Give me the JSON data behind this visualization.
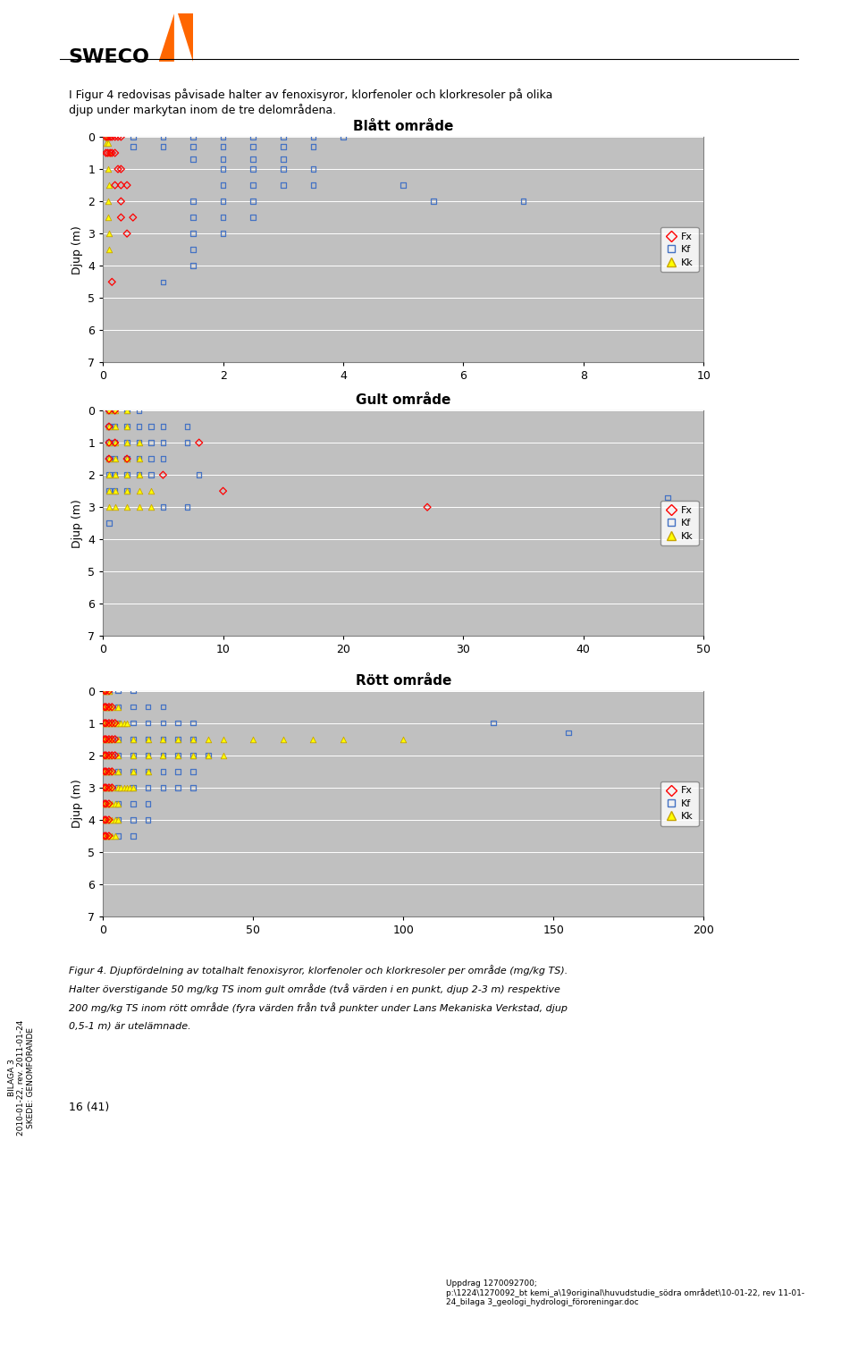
{
  "charts": [
    {
      "title": "Blått område",
      "xlim": [
        0,
        10
      ],
      "ylim": [
        0,
        7
      ],
      "xticks": [
        0,
        2,
        4,
        6,
        8,
        10
      ],
      "yticks": [
        0,
        1,
        2,
        3,
        4,
        5,
        6,
        7
      ],
      "Fx": [
        [
          0.05,
          0
        ],
        [
          0.08,
          0
        ],
        [
          0.12,
          0
        ],
        [
          0.15,
          0
        ],
        [
          0.2,
          0
        ],
        [
          0.25,
          0
        ],
        [
          0.3,
          0
        ],
        [
          0.05,
          0.5
        ],
        [
          0.08,
          0.5
        ],
        [
          0.12,
          0.5
        ],
        [
          0.15,
          0.5
        ],
        [
          0.2,
          0.5
        ],
        [
          0.25,
          1
        ],
        [
          0.3,
          1
        ],
        [
          0.4,
          1.5
        ],
        [
          0.3,
          1.5
        ],
        [
          0.2,
          1.5
        ],
        [
          0.3,
          2
        ],
        [
          0.5,
          2.5
        ],
        [
          0.3,
          2.5
        ],
        [
          0.4,
          3
        ],
        [
          0.15,
          4.5
        ]
      ],
      "Kf": [
        [
          0.5,
          0
        ],
        [
          1.0,
          0
        ],
        [
          1.5,
          0
        ],
        [
          2.0,
          0
        ],
        [
          2.5,
          0
        ],
        [
          3.0,
          0
        ],
        [
          3.5,
          0
        ],
        [
          4.0,
          0
        ],
        [
          0.5,
          0.3
        ],
        [
          1.0,
          0.3
        ],
        [
          1.5,
          0.3
        ],
        [
          2.0,
          0.3
        ],
        [
          2.5,
          0.3
        ],
        [
          3.0,
          0.3
        ],
        [
          3.5,
          0.3
        ],
        [
          1.5,
          0.7
        ],
        [
          2.0,
          0.7
        ],
        [
          2.5,
          0.7
        ],
        [
          3.0,
          0.7
        ],
        [
          2.0,
          1.0
        ],
        [
          2.5,
          1.0
        ],
        [
          3.0,
          1.0
        ],
        [
          3.5,
          1.0
        ],
        [
          2.0,
          1.5
        ],
        [
          2.5,
          1.5
        ],
        [
          3.0,
          1.5
        ],
        [
          3.5,
          1.5
        ],
        [
          1.5,
          2.0
        ],
        [
          2.0,
          2.0
        ],
        [
          2.5,
          2.0
        ],
        [
          1.5,
          2.5
        ],
        [
          2.0,
          2.5
        ],
        [
          2.5,
          2.5
        ],
        [
          1.5,
          3.0
        ],
        [
          2.0,
          3.0
        ],
        [
          1.5,
          3.5
        ],
        [
          1.5,
          4.0
        ],
        [
          1.0,
          4.5
        ],
        [
          5.5,
          2.0
        ],
        [
          7.0,
          2.0
        ],
        [
          5.0,
          1.5
        ]
      ],
      "Kk": [
        [
          0.05,
          0
        ],
        [
          0.08,
          0
        ],
        [
          0.05,
          0.2
        ],
        [
          0.08,
          0.2
        ],
        [
          0.1,
          0.5
        ],
        [
          0.08,
          1.0
        ],
        [
          0.1,
          1.5
        ],
        [
          0.08,
          2.0
        ],
        [
          0.08,
          2.5
        ],
        [
          0.1,
          3.0
        ],
        [
          0.1,
          3.5
        ]
      ]
    },
    {
      "title": "Gult område",
      "xlim": [
        0,
        50
      ],
      "ylim": [
        0,
        7
      ],
      "xticks": [
        0,
        10,
        20,
        30,
        40,
        50
      ],
      "yticks": [
        0,
        1,
        2,
        3,
        4,
        5,
        6,
        7
      ],
      "Fx": [
        [
          0.5,
          0
        ],
        [
          1.0,
          0
        ],
        [
          0.5,
          0.5
        ],
        [
          8.0,
          1
        ],
        [
          0.5,
          1
        ],
        [
          1.0,
          1
        ],
        [
          2.0,
          1.5
        ],
        [
          0.5,
          1.5
        ],
        [
          5.0,
          2
        ],
        [
          27.0,
          3
        ],
        [
          10.0,
          2.5
        ]
      ],
      "Kf": [
        [
          0.5,
          0
        ],
        [
          1.0,
          0
        ],
        [
          2.0,
          0
        ],
        [
          3.0,
          0
        ],
        [
          0.5,
          0.5
        ],
        [
          1.0,
          0.5
        ],
        [
          2.0,
          0.5
        ],
        [
          3.0,
          0.5
        ],
        [
          4.0,
          0.5
        ],
        [
          5.0,
          0.5
        ],
        [
          7.0,
          0.5
        ],
        [
          0.5,
          1
        ],
        [
          1.0,
          1
        ],
        [
          2.0,
          1
        ],
        [
          3.0,
          1
        ],
        [
          4.0,
          1
        ],
        [
          5.0,
          1
        ],
        [
          7.0,
          1
        ],
        [
          0.5,
          1.5
        ],
        [
          1.0,
          1.5
        ],
        [
          2.0,
          1.5
        ],
        [
          3.0,
          1.5
        ],
        [
          4.0,
          1.5
        ],
        [
          5.0,
          1.5
        ],
        [
          0.5,
          2
        ],
        [
          1.0,
          2
        ],
        [
          2.0,
          2
        ],
        [
          3.0,
          2
        ],
        [
          4.0,
          2
        ],
        [
          8.0,
          2
        ],
        [
          0.5,
          2.5
        ],
        [
          1.0,
          2.5
        ],
        [
          2.0,
          2.5
        ],
        [
          5.0,
          3
        ],
        [
          7.0,
          3
        ],
        [
          0.5,
          3.5
        ],
        [
          47.0,
          2.7
        ]
      ],
      "Kk": [
        [
          0.5,
          0
        ],
        [
          1.0,
          0
        ],
        [
          2.0,
          0
        ],
        [
          0.5,
          0.5
        ],
        [
          1.0,
          0.5
        ],
        [
          2.0,
          0.5
        ],
        [
          0.5,
          1
        ],
        [
          1.0,
          1
        ],
        [
          2.0,
          1
        ],
        [
          3.0,
          1
        ],
        [
          0.5,
          1.5
        ],
        [
          1.0,
          1.5
        ],
        [
          2.0,
          1.5
        ],
        [
          3.0,
          1.5
        ],
        [
          0.5,
          2
        ],
        [
          1.0,
          2
        ],
        [
          2.0,
          2
        ],
        [
          3.0,
          2
        ],
        [
          0.5,
          2.5
        ],
        [
          1.0,
          2.5
        ],
        [
          2.0,
          2.5
        ],
        [
          3.0,
          2.5
        ],
        [
          4.0,
          2.5
        ],
        [
          0.5,
          3
        ],
        [
          1.0,
          3
        ],
        [
          2.0,
          3
        ],
        [
          3.0,
          3
        ],
        [
          4.0,
          3
        ]
      ]
    },
    {
      "title": "Rött område",
      "xlim": [
        0,
        200
      ],
      "ylim": [
        0,
        7
      ],
      "xticks": [
        0,
        50,
        100,
        150,
        200
      ],
      "yticks": [
        0,
        1,
        2,
        3,
        4,
        5,
        6,
        7
      ],
      "Fx": [
        [
          0.5,
          0
        ],
        [
          1.0,
          0
        ],
        [
          2.0,
          0
        ],
        [
          0.5,
          0.5
        ],
        [
          1.0,
          0.5
        ],
        [
          2.0,
          0.5
        ],
        [
          3.0,
          0.5
        ],
        [
          0.5,
          1
        ],
        [
          1.0,
          1
        ],
        [
          2.0,
          1
        ],
        [
          3.0,
          1
        ],
        [
          4.0,
          1
        ],
        [
          0.5,
          1.5
        ],
        [
          1.0,
          1.5
        ],
        [
          2.0,
          1.5
        ],
        [
          3.0,
          1.5
        ],
        [
          4.0,
          1.5
        ],
        [
          0.5,
          2
        ],
        [
          1.0,
          2
        ],
        [
          2.0,
          2
        ],
        [
          3.0,
          2
        ],
        [
          4.0,
          2
        ],
        [
          0.5,
          2.5
        ],
        [
          1.0,
          2.5
        ],
        [
          2.0,
          2.5
        ],
        [
          3.0,
          2.5
        ],
        [
          0.5,
          3
        ],
        [
          1.0,
          3
        ],
        [
          2.0,
          3
        ],
        [
          3.0,
          3
        ],
        [
          0.5,
          3.5
        ],
        [
          1.0,
          3.5
        ],
        [
          2.0,
          3.5
        ],
        [
          0.5,
          4
        ],
        [
          1.0,
          4
        ],
        [
          2.0,
          4
        ],
        [
          0.5,
          4.5
        ],
        [
          1.0,
          4.5
        ],
        [
          2.0,
          4.5
        ]
      ],
      "Kf": [
        [
          2.0,
          0
        ],
        [
          5.0,
          0
        ],
        [
          10.0,
          0
        ],
        [
          2.0,
          0.5
        ],
        [
          5.0,
          0.5
        ],
        [
          10.0,
          0.5
        ],
        [
          15.0,
          0.5
        ],
        [
          20.0,
          0.5
        ],
        [
          2.0,
          1
        ],
        [
          5.0,
          1
        ],
        [
          10.0,
          1
        ],
        [
          15.0,
          1
        ],
        [
          20.0,
          1
        ],
        [
          25.0,
          1
        ],
        [
          30.0,
          1
        ],
        [
          2.0,
          1.5
        ],
        [
          5.0,
          1.5
        ],
        [
          10.0,
          1.5
        ],
        [
          15.0,
          1.5
        ],
        [
          20.0,
          1.5
        ],
        [
          25.0,
          1.5
        ],
        [
          30.0,
          1.5
        ],
        [
          2.0,
          2
        ],
        [
          5.0,
          2
        ],
        [
          10.0,
          2
        ],
        [
          15.0,
          2
        ],
        [
          20.0,
          2
        ],
        [
          25.0,
          2
        ],
        [
          30.0,
          2
        ],
        [
          35.0,
          2
        ],
        [
          2.0,
          2.5
        ],
        [
          5.0,
          2.5
        ],
        [
          10.0,
          2.5
        ],
        [
          15.0,
          2.5
        ],
        [
          20.0,
          2.5
        ],
        [
          25.0,
          2.5
        ],
        [
          30.0,
          2.5
        ],
        [
          2.0,
          3
        ],
        [
          5.0,
          3
        ],
        [
          10.0,
          3
        ],
        [
          15.0,
          3
        ],
        [
          20.0,
          3
        ],
        [
          25.0,
          3
        ],
        [
          30.0,
          3
        ],
        [
          5.0,
          3.5
        ],
        [
          10.0,
          3.5
        ],
        [
          15.0,
          3.5
        ],
        [
          5.0,
          4
        ],
        [
          10.0,
          4
        ],
        [
          15.0,
          4
        ],
        [
          5.0,
          4.5
        ],
        [
          10.0,
          4.5
        ],
        [
          130.0,
          1
        ],
        [
          155.0,
          1.3
        ]
      ],
      "Kk": [
        [
          0.5,
          0
        ],
        [
          1.0,
          0
        ],
        [
          2.0,
          0
        ],
        [
          0.5,
          0.5
        ],
        [
          1.0,
          0.5
        ],
        [
          2.0,
          0.5
        ],
        [
          3.0,
          0.5
        ],
        [
          5.0,
          0.5
        ],
        [
          0.5,
          1
        ],
        [
          1.0,
          1
        ],
        [
          2.0,
          1
        ],
        [
          3.0,
          1
        ],
        [
          4.0,
          1
        ],
        [
          5.0,
          1
        ],
        [
          6.0,
          1
        ],
        [
          7.0,
          1
        ],
        [
          8.0,
          1
        ],
        [
          0.5,
          1.5
        ],
        [
          1.0,
          1.5
        ],
        [
          2.0,
          1.5
        ],
        [
          3.0,
          1.5
        ],
        [
          5.0,
          1.5
        ],
        [
          10.0,
          1.5
        ],
        [
          15.0,
          1.5
        ],
        [
          20.0,
          1.5
        ],
        [
          25.0,
          1.5
        ],
        [
          30.0,
          1.5
        ],
        [
          35.0,
          1.5
        ],
        [
          40.0,
          1.5
        ],
        [
          50.0,
          1.5
        ],
        [
          60.0,
          1.5
        ],
        [
          70.0,
          1.5
        ],
        [
          80.0,
          1.5
        ],
        [
          100.0,
          1.5
        ],
        [
          0.5,
          2
        ],
        [
          1.0,
          2
        ],
        [
          2.0,
          2
        ],
        [
          3.0,
          2
        ],
        [
          5.0,
          2
        ],
        [
          10.0,
          2
        ],
        [
          15.0,
          2
        ],
        [
          20.0,
          2
        ],
        [
          25.0,
          2
        ],
        [
          30.0,
          2
        ],
        [
          35.0,
          2
        ],
        [
          40.0,
          2
        ],
        [
          0.5,
          2.5
        ],
        [
          1.0,
          2.5
        ],
        [
          2.0,
          2.5
        ],
        [
          3.0,
          2.5
        ],
        [
          5.0,
          2.5
        ],
        [
          10.0,
          2.5
        ],
        [
          15.0,
          2.5
        ],
        [
          0.5,
          3
        ],
        [
          1.0,
          3
        ],
        [
          2.0,
          3
        ],
        [
          3.0,
          3
        ],
        [
          5.0,
          3
        ],
        [
          6.0,
          3
        ],
        [
          7.0,
          3
        ],
        [
          8.0,
          3
        ],
        [
          9.0,
          3
        ],
        [
          10.0,
          3
        ],
        [
          0.5,
          3.5
        ],
        [
          1.0,
          3.5
        ],
        [
          2.0,
          3.5
        ],
        [
          3.0,
          3.5
        ],
        [
          4.0,
          3.5
        ],
        [
          5.0,
          3.5
        ],
        [
          0.5,
          4
        ],
        [
          1.0,
          4
        ],
        [
          2.0,
          4
        ],
        [
          3.0,
          4
        ],
        [
          4.0,
          4
        ],
        [
          5.0,
          4
        ],
        [
          0.5,
          4.5
        ],
        [
          1.0,
          4.5
        ],
        [
          2.0,
          4.5
        ],
        [
          3.0,
          4.5
        ],
        [
          4.0,
          4.5
        ]
      ]
    }
  ],
  "ylabel": "Djup (m)",
  "fx_color": "#FF0000",
  "kf_color": "#4472C4",
  "kk_color": "#FFFF00",
  "kk_edge": "#C8A400",
  "bg_color": "#C0C0C0",
  "grid_color": "#FFFFFF",
  "fig_bg": "#FFFFFF",
  "title_fontsize": 11,
  "axis_fontsize": 9,
  "tick_fontsize": 9,
  "legend_fontsize": 8,
  "header_text": "I Figur 4 redovisas påvisade halter av fenoxisyror, klorfenoler och klorkresoler på olika\ndjup under markytan inom de tre delområdena.",
  "footer_caption": "Figur 4. Djupfördelning av totalhalt fenoxisyror, klorfenoler och klorkresoler per område (mg/kg TS).",
  "footer_line2": "Halter överstigande 50 mg/kg TS inom gult område (två värden i en punkt, djup 2-3 m) respektive",
  "footer_line3": "200 mg/kg TS inom rött område (fyra värden från två punkter under Lans Mekaniska Verkstad, djup",
  "footer_line4": "0,5-1 m) är utelämnade.",
  "page_text": "16 (41)",
  "bilaga_text": "BILAGA 3\n2010-01-22, rev. 2011-01-24\nSKEDE: GENOMFÖRANDE",
  "uppdrag_text": "Uppdrag 1270092700;\np:\\1224\\1270092_bt kemi_a\\19original\\huvudstudie_södra området\\10-01-22, rev 11-01-\n24_bilaga 3_geologi_hydrologi_föroreningar.doc",
  "sweco_logo_text": "SWECO",
  "top_line_y": 0.957
}
